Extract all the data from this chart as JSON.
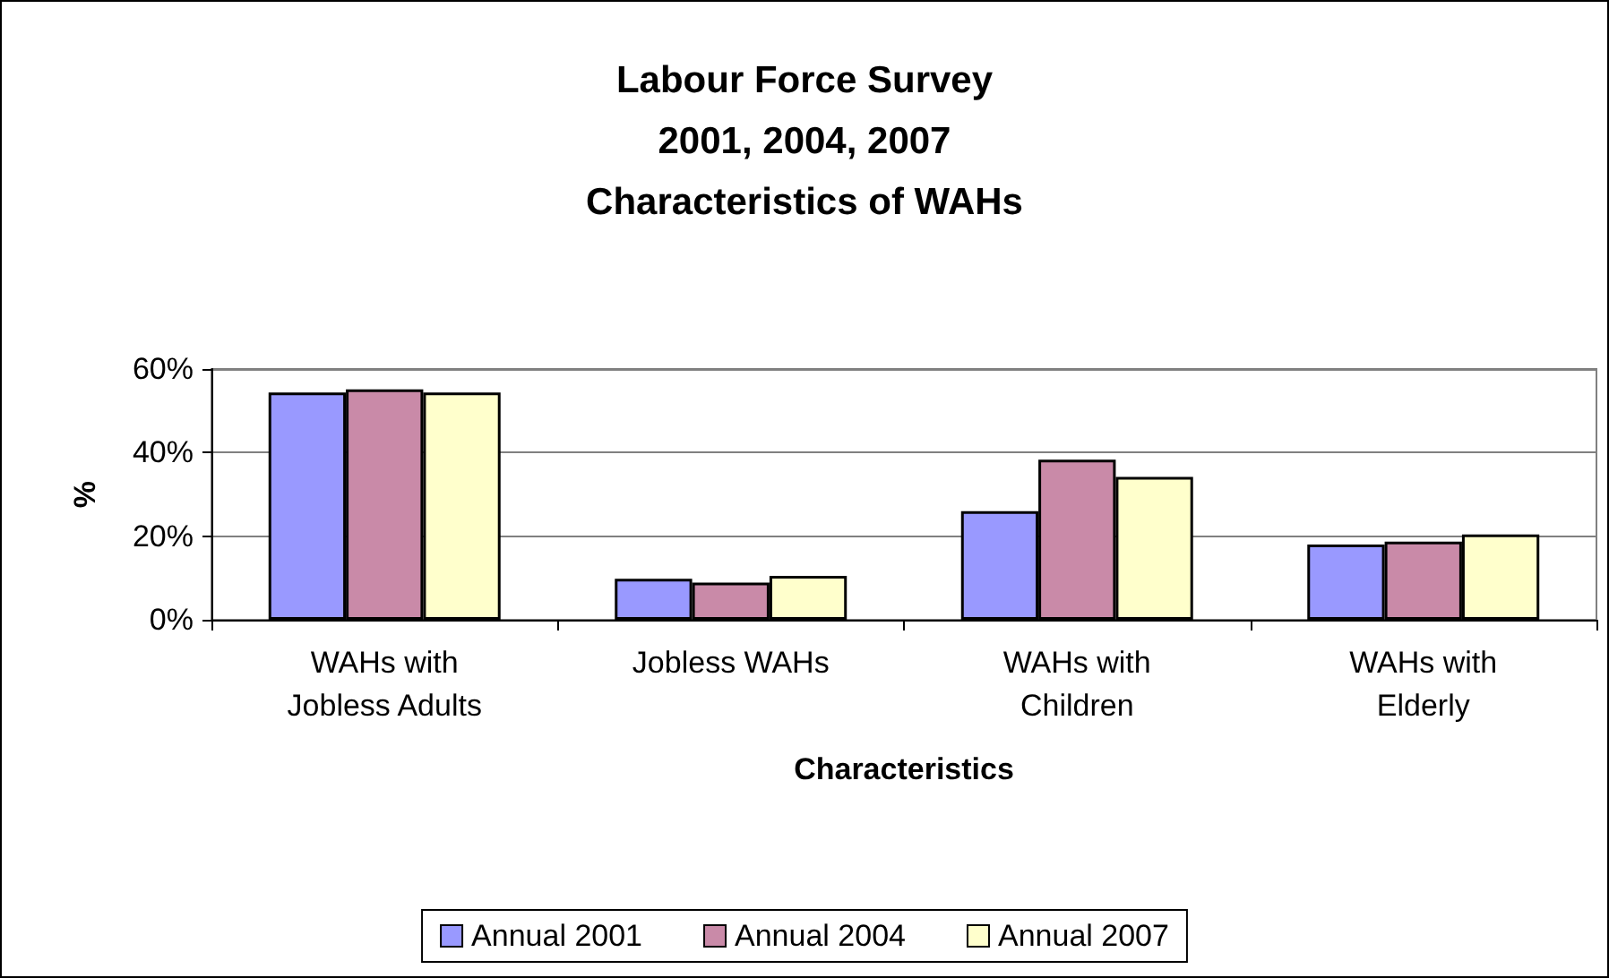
{
  "chart_data": {
    "type": "bar",
    "title": "Labour Force Survey\n2001, 2004, 2007\nCharacteristics of WAHs",
    "xlabel": "Characteristics",
    "ylabel": "%",
    "categories": [
      "WAHs with\nJobless Adults",
      "Jobless WAHs",
      "WAHs with\nChildren",
      "WAHs with\nElderly"
    ],
    "series": [
      {
        "name": "Annual 2001",
        "color": "#9999ff",
        "values": [
          54.4,
          9.8,
          26.0,
          18.0
        ]
      },
      {
        "name": "Annual 2004",
        "color": "#c98aa8",
        "values": [
          55.1,
          8.9,
          38.3,
          18.7
        ]
      },
      {
        "name": "Annual 2007",
        "color": "#ffffcc",
        "values": [
          54.4,
          10.5,
          34.2,
          20.4
        ]
      }
    ],
    "ylim": [
      0,
      60
    ],
    "yticks": [
      {
        "value": 0,
        "label": "0%"
      },
      {
        "value": 20,
        "label": "20%"
      },
      {
        "value": 40,
        "label": "40%"
      },
      {
        "value": 60,
        "label": "60%"
      }
    ],
    "grid": "y",
    "legend": "bottom"
  }
}
